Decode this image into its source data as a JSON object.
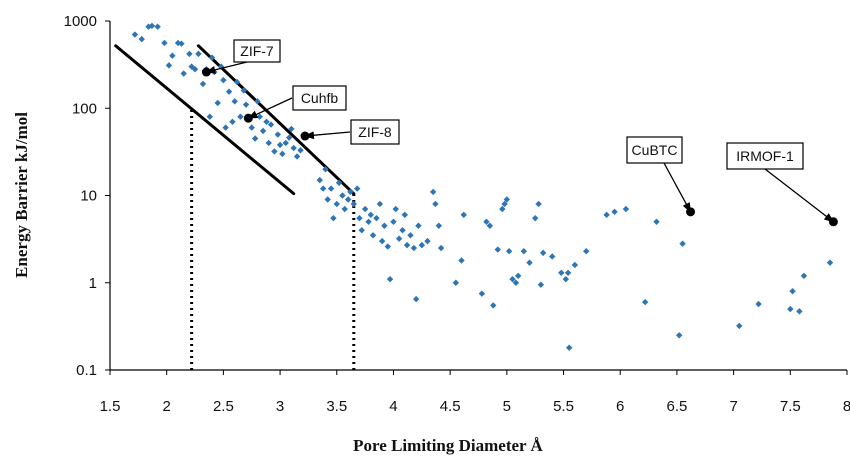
{
  "chart_data": {
    "type": "scatter",
    "title": "",
    "xlabel": "Pore Limiting Diameter Å",
    "ylabel": "Energy Barrier kJ/mol",
    "xlim": [
      1.5,
      8
    ],
    "ylim": [
      0.1,
      1000
    ],
    "yscale": "log",
    "grid": false,
    "legend": "none",
    "x_ticks": [
      "1.5",
      "2",
      "2.5",
      "3",
      "3.5",
      "4",
      "4.5",
      "5",
      "5.5",
      "6",
      "6.5",
      "7",
      "7.5",
      "8"
    ],
    "y_ticks": [
      "0.1",
      "1",
      "10",
      "100",
      "1000"
    ],
    "series": [
      {
        "color": "#2e75b6",
        "marker": "diamond",
        "points": [
          [
            1.72,
            700
          ],
          [
            1.78,
            620
          ],
          [
            1.84,
            860
          ],
          [
            1.87,
            880
          ],
          [
            1.92,
            860
          ],
          [
            1.98,
            560
          ],
          [
            2.05,
            400
          ],
          [
            2.02,
            310
          ],
          [
            2.1,
            560
          ],
          [
            2.13,
            550
          ],
          [
            2.15,
            250
          ],
          [
            2.2,
            420
          ],
          [
            2.22,
            300
          ],
          [
            2.25,
            280
          ],
          [
            2.28,
            420
          ],
          [
            2.32,
            190
          ],
          [
            2.35,
            280
          ],
          [
            2.38,
            80
          ],
          [
            2.4,
            380
          ],
          [
            2.42,
            260
          ],
          [
            2.45,
            115
          ],
          [
            2.48,
            300
          ],
          [
            2.5,
            210
          ],
          [
            2.52,
            60
          ],
          [
            2.55,
            155
          ],
          [
            2.58,
            70
          ],
          [
            2.6,
            120
          ],
          [
            2.62,
            200
          ],
          [
            2.65,
            80
          ],
          [
            2.68,
            160
          ],
          [
            2.7,
            110
          ],
          [
            2.72,
            75
          ],
          [
            2.75,
            60
          ],
          [
            2.78,
            45
          ],
          [
            2.8,
            120
          ],
          [
            2.82,
            80
          ],
          [
            2.85,
            55
          ],
          [
            2.88,
            70
          ],
          [
            2.9,
            40
          ],
          [
            2.92,
            65
          ],
          [
            2.95,
            32
          ],
          [
            2.98,
            50
          ],
          [
            3.0,
            38
          ],
          [
            3.02,
            30
          ],
          [
            3.05,
            40
          ],
          [
            3.08,
            46
          ],
          [
            3.1,
            58
          ],
          [
            3.12,
            35
          ],
          [
            3.15,
            28
          ],
          [
            3.18,
            33
          ],
          [
            3.35,
            15
          ],
          [
            3.38,
            12
          ],
          [
            3.4,
            20
          ],
          [
            3.42,
            9
          ],
          [
            3.45,
            12
          ],
          [
            3.47,
            5.5
          ],
          [
            3.5,
            8
          ],
          [
            3.52,
            14
          ],
          [
            3.55,
            10
          ],
          [
            3.57,
            7
          ],
          [
            3.6,
            9
          ],
          [
            3.62,
            11
          ],
          [
            3.65,
            8
          ],
          [
            3.68,
            12
          ],
          [
            3.7,
            5.5
          ],
          [
            3.72,
            4
          ],
          [
            3.75,
            7
          ],
          [
            3.78,
            5
          ],
          [
            3.8,
            6
          ],
          [
            3.82,
            3.5
          ],
          [
            3.85,
            5.5
          ],
          [
            3.88,
            8
          ],
          [
            3.9,
            3
          ],
          [
            3.92,
            4.5
          ],
          [
            3.95,
            2.6
          ],
          [
            3.97,
            1.1
          ],
          [
            4.0,
            5
          ],
          [
            4.02,
            7
          ],
          [
            4.05,
            3.2
          ],
          [
            4.08,
            4
          ],
          [
            4.1,
            6
          ],
          [
            4.12,
            2.7
          ],
          [
            4.15,
            3.5
          ],
          [
            4.18,
            2.5
          ],
          [
            4.2,
            0.65
          ],
          [
            4.22,
            4.5
          ],
          [
            4.25,
            2.7
          ],
          [
            4.3,
            3
          ],
          [
            4.35,
            11
          ],
          [
            4.37,
            8
          ],
          [
            4.4,
            4.5
          ],
          [
            4.42,
            2.5
          ],
          [
            4.55,
            1.0
          ],
          [
            4.6,
            1.8
          ],
          [
            4.62,
            6
          ],
          [
            4.78,
            0.75
          ],
          [
            4.82,
            5
          ],
          [
            4.85,
            4.5
          ],
          [
            4.88,
            0.55
          ],
          [
            4.92,
            2.4
          ],
          [
            4.96,
            7
          ],
          [
            4.98,
            8
          ],
          [
            5.0,
            9
          ],
          [
            5.02,
            2.3
          ],
          [
            5.05,
            1.1
          ],
          [
            5.08,
            1.0
          ],
          [
            5.1,
            1.2
          ],
          [
            5.15,
            2.3
          ],
          [
            5.2,
            1.7
          ],
          [
            5.25,
            5.5
          ],
          [
            5.28,
            8
          ],
          [
            5.3,
            0.95
          ],
          [
            5.32,
            2.2
          ],
          [
            5.4,
            2.0
          ],
          [
            5.48,
            1.3
          ],
          [
            5.52,
            1.1
          ],
          [
            5.54,
            1.3
          ],
          [
            5.55,
            0.18
          ],
          [
            5.6,
            1.6
          ],
          [
            5.7,
            2.3
          ],
          [
            5.88,
            6
          ],
          [
            5.95,
            6.5
          ],
          [
            6.05,
            7
          ],
          [
            6.22,
            0.6
          ],
          [
            6.32,
            5
          ],
          [
            6.52,
            0.25
          ],
          [
            6.55,
            2.8
          ],
          [
            7.05,
            0.32
          ],
          [
            7.22,
            0.57
          ],
          [
            7.5,
            0.5
          ],
          [
            7.52,
            0.8
          ],
          [
            7.58,
            0.47
          ],
          [
            7.62,
            1.2
          ],
          [
            7.85,
            1.7
          ]
        ]
      }
    ],
    "highlighted_points": [
      {
        "label": "ZIF-7",
        "x": 2.35,
        "y": 260,
        "color": "#000000"
      },
      {
        "label": "Cuhfb",
        "x": 2.72,
        "y": 77,
        "color": "#000000"
      },
      {
        "label": "ZIF-8",
        "x": 3.22,
        "y": 48,
        "color": "#000000"
      },
      {
        "label": "CuBTC",
        "x": 6.62,
        "y": 6.5,
        "color": "#000000"
      },
      {
        "label": "IRMOF-1",
        "x": 7.88,
        "y": 5.0,
        "color": "#000000"
      }
    ],
    "trend_lines": [
      {
        "style": "solid",
        "color": "#000000",
        "from": [
          1.55,
          520
        ],
        "to": [
          3.12,
          10.5
        ]
      },
      {
        "style": "solid",
        "color": "#000000",
        "from": [
          2.28,
          520
        ],
        "to": [
          3.65,
          10.5
        ]
      }
    ],
    "reference_lines": [
      {
        "style": "dotted",
        "color": "#000000",
        "x": 2.22,
        "y_from": 0.1,
        "y_to": 100
      },
      {
        "style": "dotted",
        "color": "#000000",
        "x": 3.65,
        "y_from": 0.1,
        "y_to": 10.5
      }
    ]
  }
}
